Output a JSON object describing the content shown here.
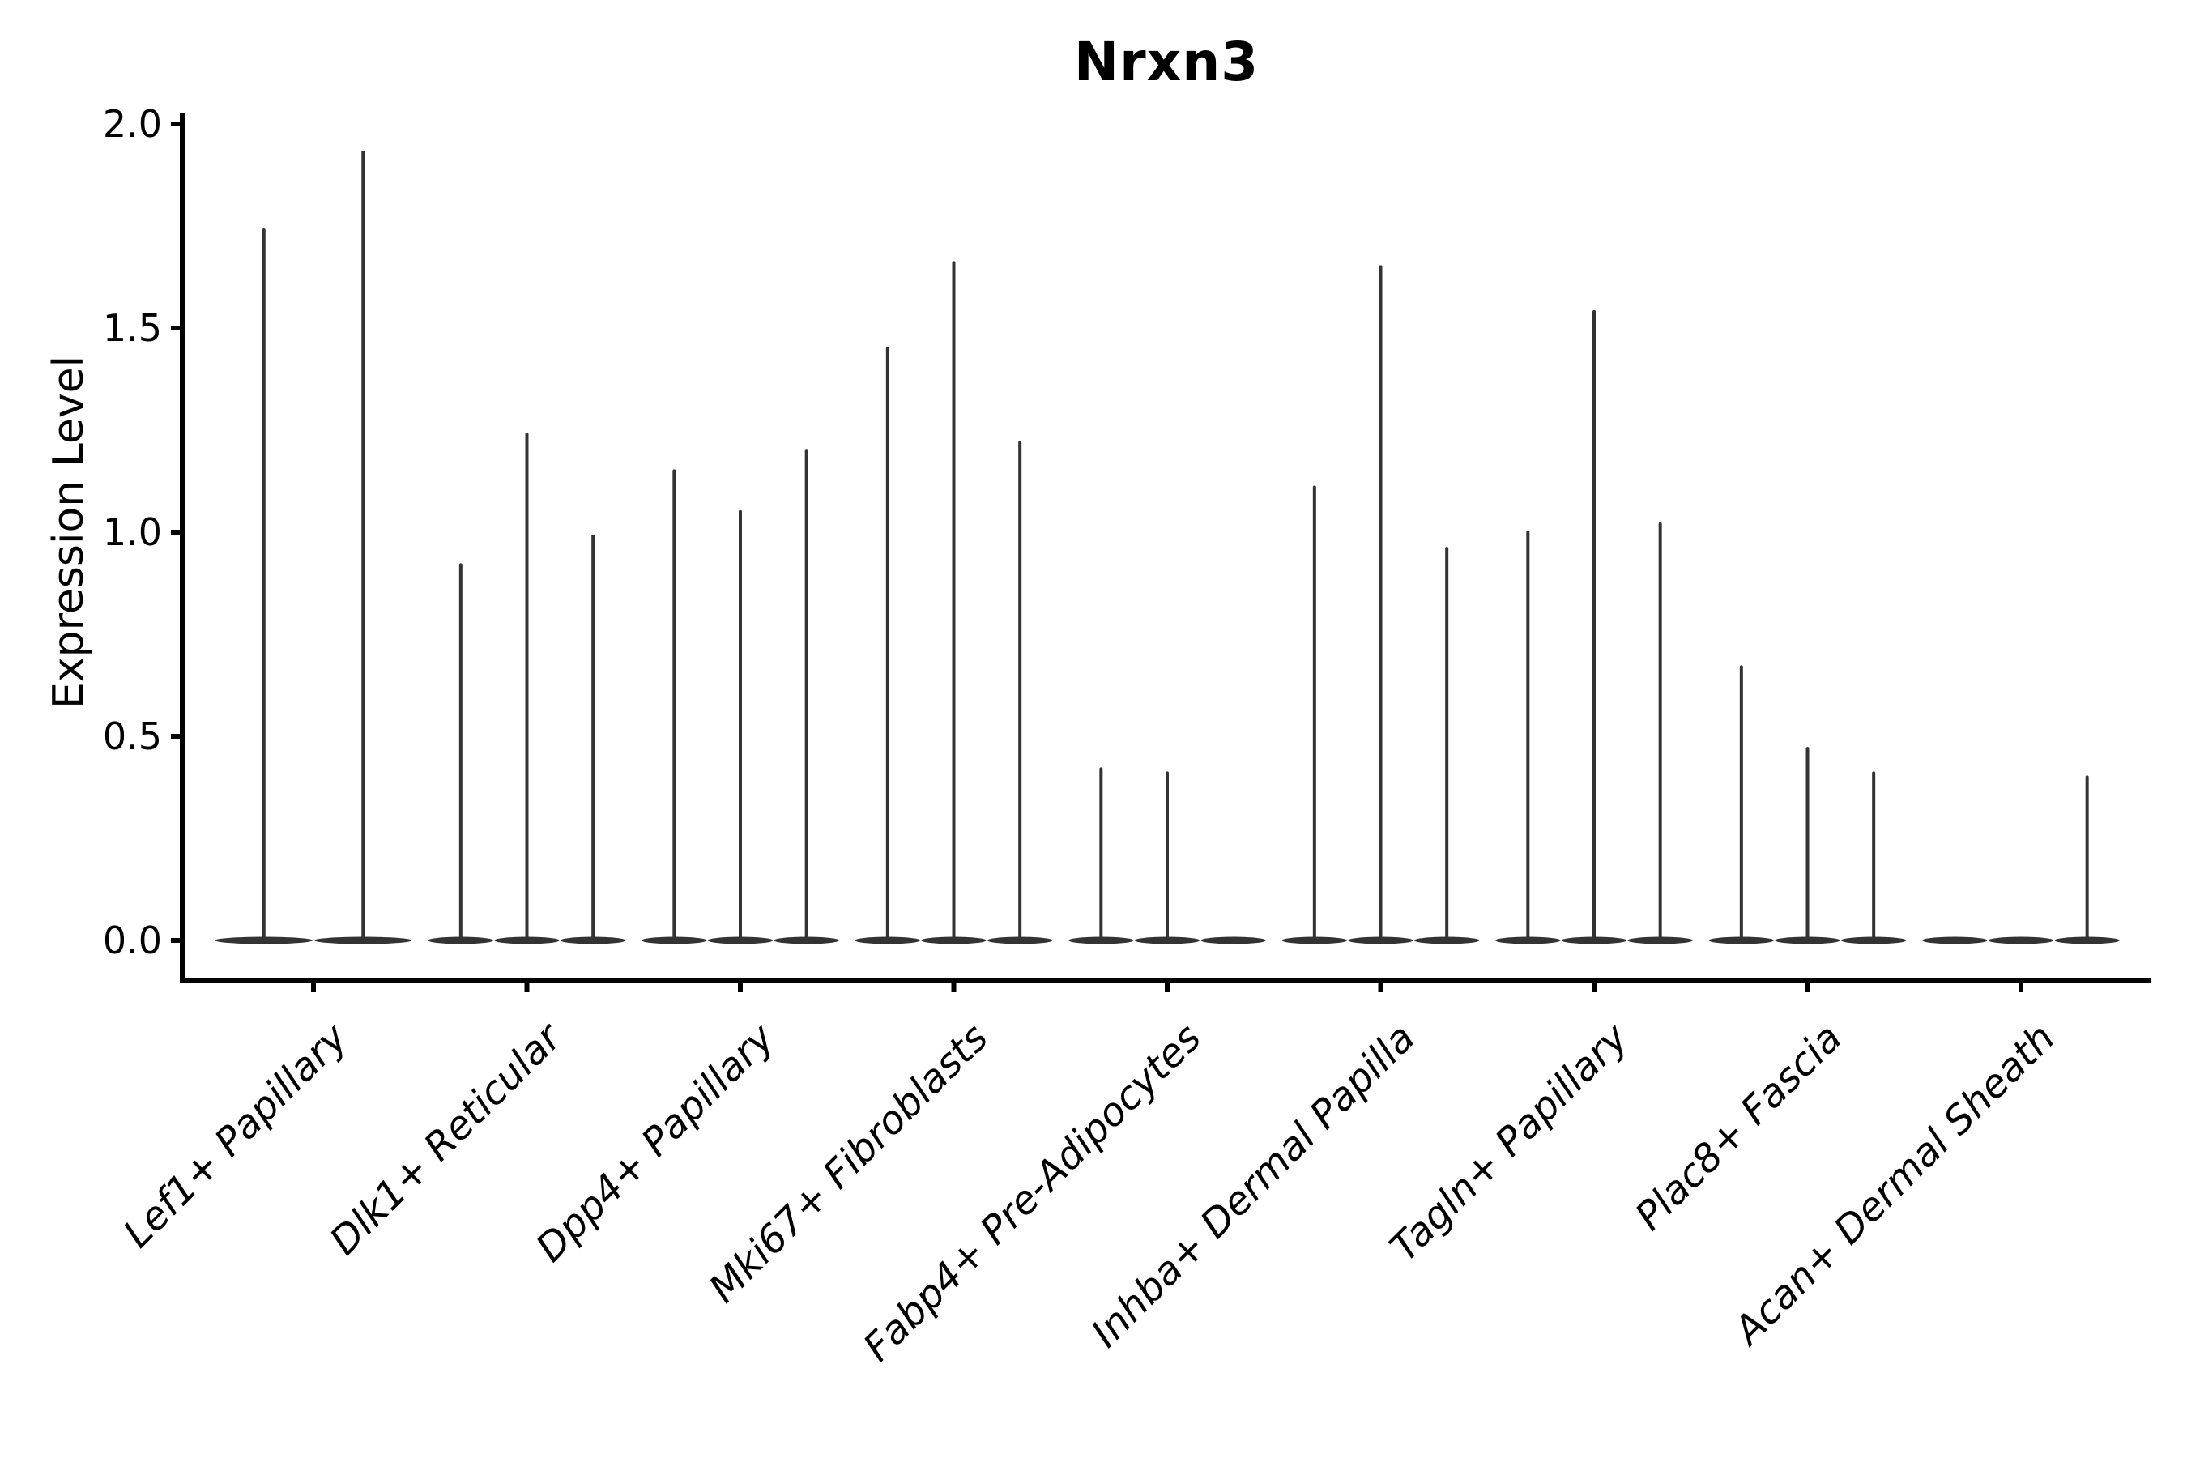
{
  "title": "Nrxn3",
  "ylabel": "Expression Level",
  "colors": {
    "violin": "#333333",
    "axis": "#000000",
    "background": "#ffffff"
  },
  "chart_data": {
    "type": "violin",
    "title": "Nrxn3",
    "xlabel": "",
    "ylabel": "Expression Level",
    "ylim": [
      0.0,
      2.05
    ],
    "yticks": [
      0.0,
      0.5,
      1.0,
      1.5,
      2.0
    ],
    "grid": false,
    "legend": "none",
    "style_note": "each violin is a flat dense base at 0 with a single thin spike to its max value",
    "categories": [
      "Lef1+ Papillary",
      "Dlk1+ Reticular",
      "Dpp4+ Papillary",
      "Mki67+ Fibroblasts",
      "Fabp4+ Pre-Adipocytes",
      "Inhba+ Dermal Papilla",
      "Tagln+ Papillary",
      "Plac8+ Fascia",
      "Acan+ Dermal Sheath"
    ],
    "groups": [
      {
        "category": "Lef1+ Papillary",
        "violin_max_values": [
          1.74,
          1.93
        ]
      },
      {
        "category": "Dlk1+ Reticular",
        "violin_max_values": [
          0.92,
          1.24,
          0.99
        ]
      },
      {
        "category": "Dpp4+ Papillary",
        "violin_max_values": [
          1.15,
          1.05,
          1.2
        ]
      },
      {
        "category": "Mki67+ Fibroblasts",
        "violin_max_values": [
          1.45,
          1.66,
          1.22
        ]
      },
      {
        "category": "Fabp4+ Pre-Adipocytes",
        "violin_max_values": [
          0.42,
          0.41,
          0.0
        ]
      },
      {
        "category": "Inhba+ Dermal Papilla",
        "violin_max_values": [
          1.11,
          1.65,
          0.96
        ]
      },
      {
        "category": "Tagln+ Papillary",
        "violin_max_values": [
          1.0,
          1.54,
          1.02
        ]
      },
      {
        "category": "Plac8+ Fascia",
        "violin_max_values": [
          0.67,
          0.47,
          0.41
        ]
      },
      {
        "category": "Acan+ Dermal Sheath",
        "violin_max_values": [
          0.0,
          0.0,
          0.4
        ]
      }
    ]
  }
}
